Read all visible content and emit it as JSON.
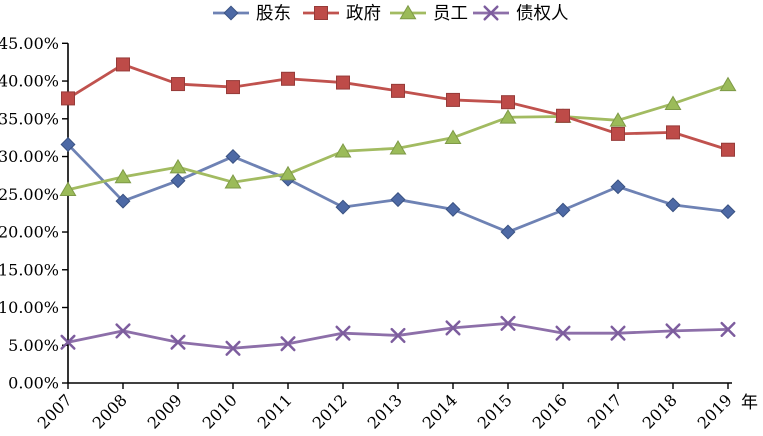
{
  "page": {
    "background": "#ffffff",
    "text_color": "#000000",
    "axis_color": "#000000"
  },
  "chart_data": {
    "type": "line",
    "title": "",
    "x_axis_label": "年",
    "categories": [
      "2007",
      "2008",
      "2009",
      "2010",
      "2011",
      "2012",
      "2013",
      "2014",
      "2015",
      "2016",
      "2017",
      "2018",
      "2019"
    ],
    "ylim": [
      0,
      45
    ],
    "y_tick_step": 5,
    "y_tick_labels": [
      "0.00%",
      "5.00%",
      "10.00%",
      "15.00%",
      "20.00%",
      "25.00%",
      "30.00%",
      "35.00%",
      "40.00%",
      "45.00%"
    ],
    "grid": false,
    "legend_position": "top",
    "legend_entries": [
      "股东",
      "政府",
      "员工",
      "债权人"
    ],
    "series": [
      {
        "name": "股东",
        "marker": "diamond",
        "line_color": "#6E82B4",
        "marker_fill": "#4D69A5",
        "marker_stroke": "#3A5282",
        "values": [
          31.6,
          24.1,
          26.8,
          30.0,
          27.0,
          23.3,
          24.3,
          23.0,
          20.0,
          22.9,
          26.0,
          23.6,
          22.7
        ]
      },
      {
        "name": "政府",
        "marker": "square",
        "line_color": "#C0524E",
        "marker_fill": "#BE4B48",
        "marker_stroke": "#963B39",
        "values": [
          37.7,
          42.2,
          39.6,
          39.2,
          40.3,
          39.8,
          38.7,
          37.5,
          37.2,
          35.4,
          33.0,
          33.2,
          30.9
        ]
      },
      {
        "name": "员工",
        "marker": "triangle",
        "line_color": "#A2BB61",
        "marker_fill": "#9BBB59",
        "marker_stroke": "#7E9A47",
        "values": [
          25.6,
          27.3,
          28.6,
          26.6,
          27.7,
          30.7,
          31.1,
          32.5,
          35.2,
          35.3,
          34.8,
          37.0,
          39.5
        ]
      },
      {
        "name": "债权人",
        "marker": "xmark",
        "line_color": "#8D6FA9",
        "marker_fill": "none",
        "marker_stroke": "#7D5D9E",
        "values": [
          5.4,
          6.9,
          5.4,
          4.6,
          5.2,
          6.6,
          6.3,
          7.3,
          7.9,
          6.6,
          6.6,
          6.9,
          7.1
        ]
      }
    ]
  }
}
